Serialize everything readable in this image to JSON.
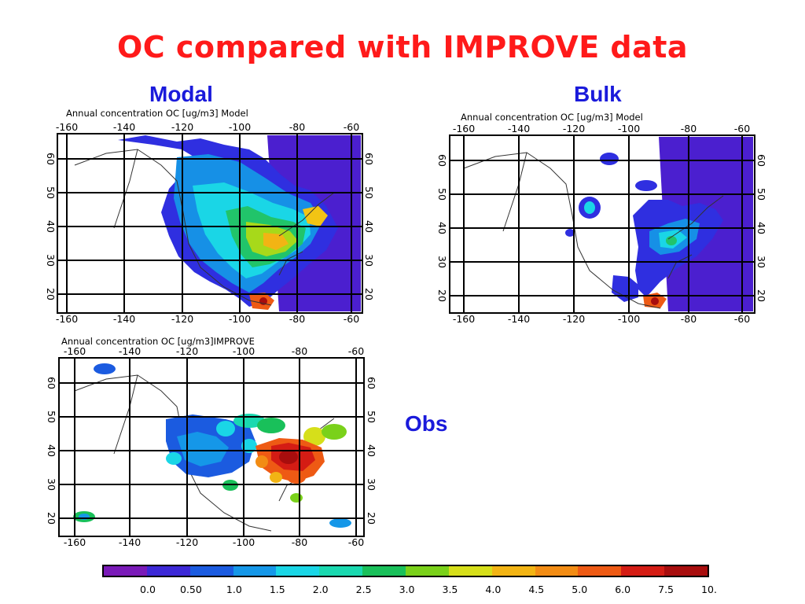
{
  "slide_title": "OC compared with IMPROVE data",
  "panels": {
    "modal": {
      "label": "Modal",
      "map_title": "Annual concentration OC [ug/m3] Model"
    },
    "bulk": {
      "label": "Bulk",
      "map_title": "Annual concentration OC [ug/m3] Model"
    },
    "obs": {
      "label": "Obs",
      "map_title": "Annual concentration OC [ug/m3]IMPROVE"
    }
  },
  "lon_ticks": [
    "-160",
    "-140",
    "-120",
    "-100",
    "-80",
    "-60"
  ],
  "lat_ticks": [
    "60",
    "50",
    "40",
    "30",
    "20"
  ],
  "colorbar": {
    "colors": [
      "#7a1ab8",
      "#3c28d6",
      "#1b5be0",
      "#1597e8",
      "#1ad6e6",
      "#1ad9b0",
      "#19c05a",
      "#7ad11a",
      "#d6df1a",
      "#f2b414",
      "#f28c14",
      "#ee5a14",
      "#d41c14",
      "#a80d0d"
    ],
    "labels": [
      "0.0",
      "0.50",
      "1.0",
      "1.5",
      "2.0",
      "2.5",
      "3.0",
      "3.5",
      "4.0",
      "4.5",
      "5.0",
      "6.0",
      "7.5",
      "10."
    ]
  }
}
